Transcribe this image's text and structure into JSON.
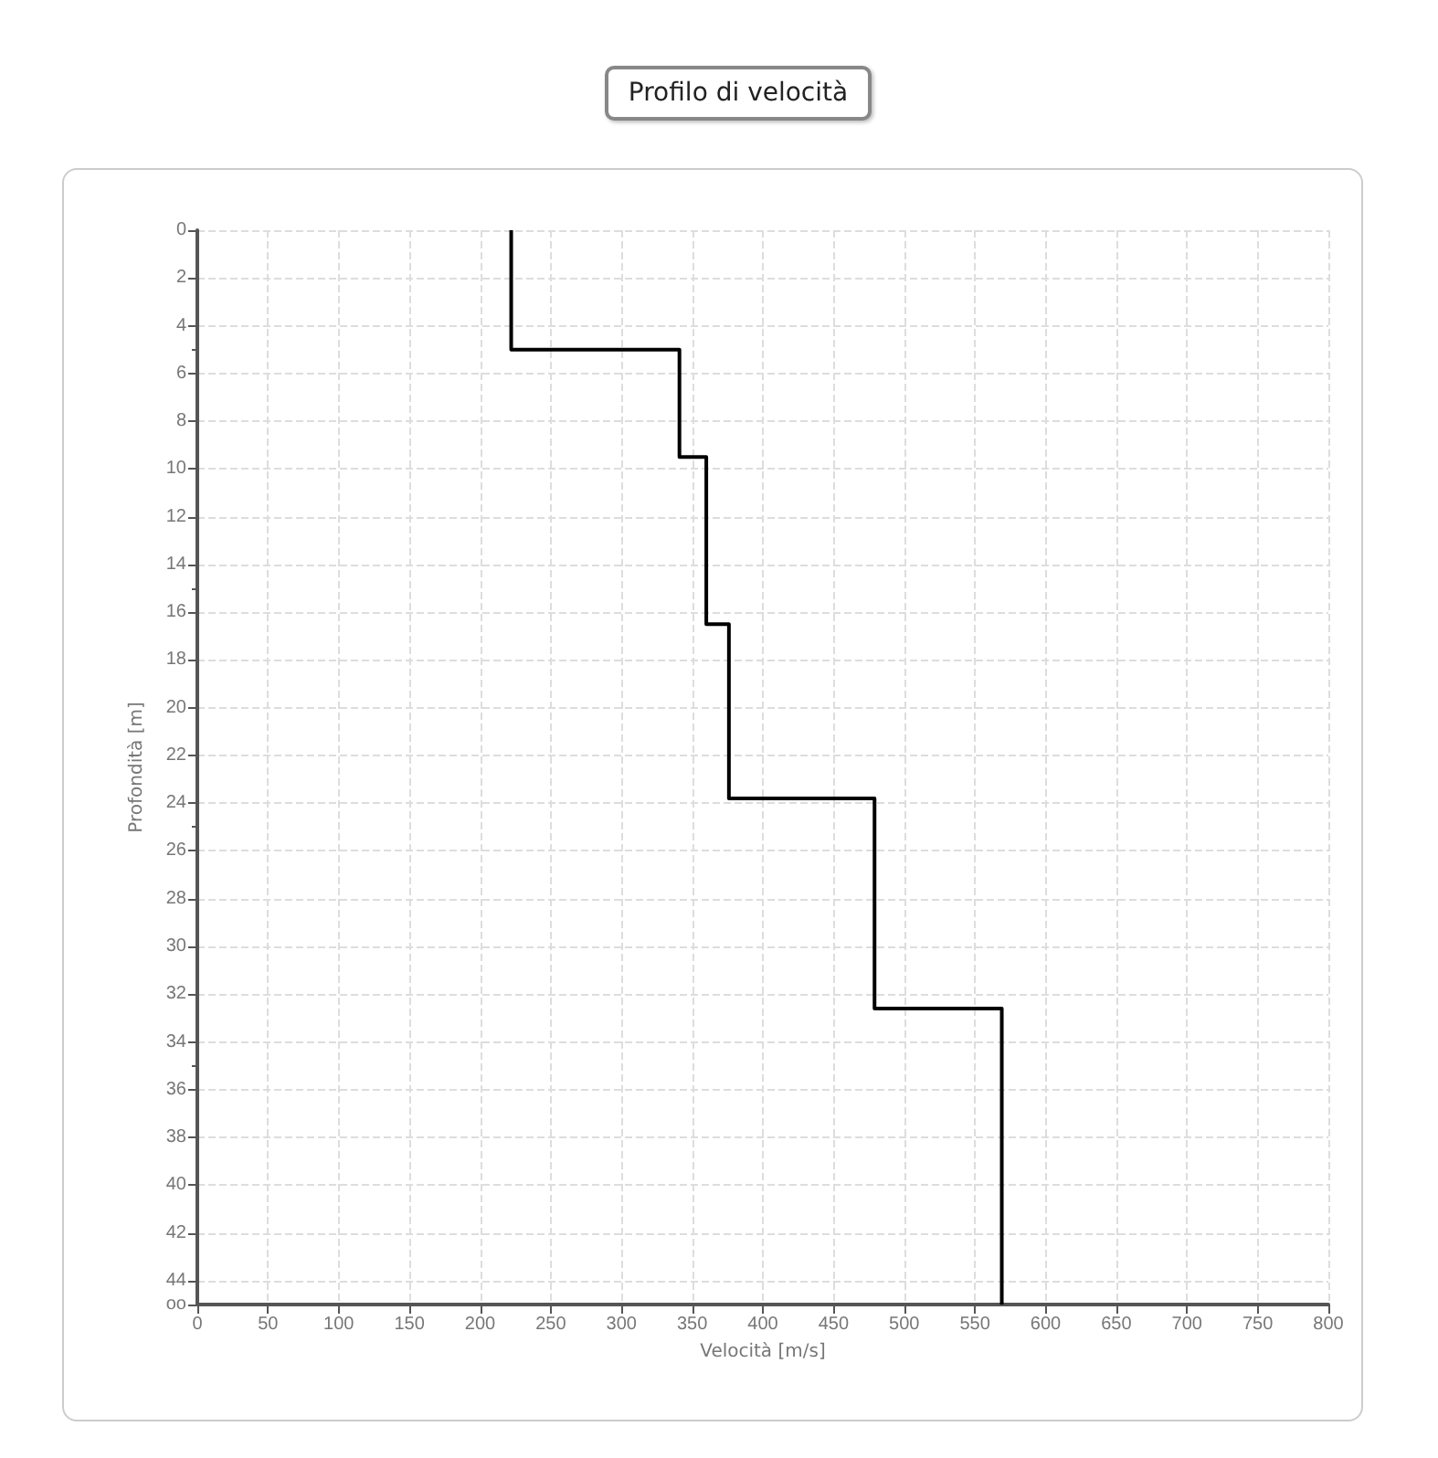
{
  "chart_data": {
    "type": "line",
    "title": "Profilo di velocità",
    "xlabel": "Velocità [m/s]",
    "ylabel": "Profondità [m]",
    "x": [
      222,
      222,
      341,
      341,
      360,
      360,
      376,
      376,
      479,
      479,
      569,
      569
    ],
    "values": [
      0,
      5,
      5,
      9.5,
      9.5,
      16.5,
      16.5,
      23.8,
      23.8,
      32.6,
      32.6,
      45
    ],
    "color": "#000000",
    "xlim": [
      0,
      800
    ],
    "xticks": [
      0,
      50,
      100,
      150,
      200,
      250,
      300,
      350,
      400,
      450,
      500,
      550,
      600,
      650,
      700,
      750,
      800
    ],
    "ylim": [
      45,
      0
    ],
    "yticks": [
      0,
      2,
      4,
      6,
      8,
      10,
      12,
      14,
      16,
      18,
      20,
      22,
      24,
      26,
      28,
      30,
      32,
      34,
      36,
      38,
      40,
      42,
      44,
      {
        "value": 45,
        "label": "oo"
      }
    ],
    "grid": true,
    "marker": "none",
    "line_style": "solid"
  }
}
